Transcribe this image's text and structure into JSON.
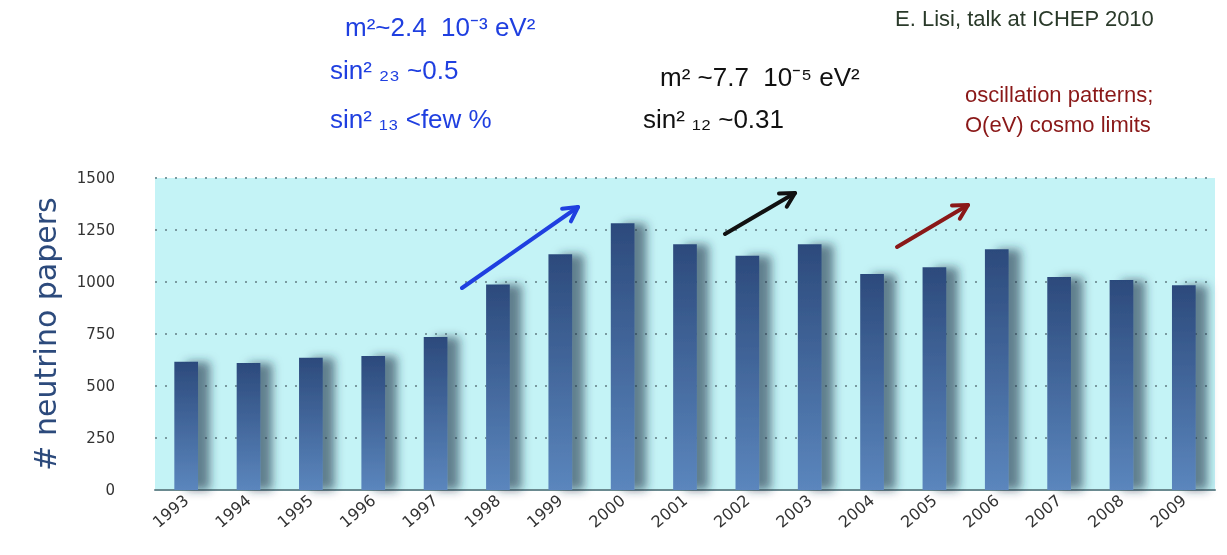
{
  "chart_data": {
    "type": "bar",
    "ylabel": "# neutrino papers",
    "categories": [
      "1993",
      "1994",
      "1995",
      "1996",
      "1997",
      "1998",
      "1999",
      "2000",
      "2001",
      "2002",
      "2003",
      "2004",
      "2005",
      "2006",
      "2007",
      "2008",
      "2009"
    ],
    "values": [
      617,
      610,
      636,
      644,
      736,
      988,
      1133,
      1283,
      1181,
      1126,
      1181,
      1039,
      1071,
      1157,
      1024,
      1010,
      984
    ],
    "color": "#2c4a7c",
    "ylim": [
      0,
      1500
    ],
    "yticks": [
      0,
      250,
      500,
      750,
      1000,
      1250,
      1500
    ],
    "grid": "y",
    "annotations": [
      "E. Lisi, talk at ICHEP 2010",
      "m²~2.4  10⁻³ eV²",
      "sin² ₂₃ ~0.5",
      "sin² ₁₃ <few %",
      "m² ~7.7  10⁻⁵ eV²",
      "sin² ₁₂ ~0.31",
      "oscillation patterns;",
      "O(eV) cosmo limits"
    ]
  }
}
